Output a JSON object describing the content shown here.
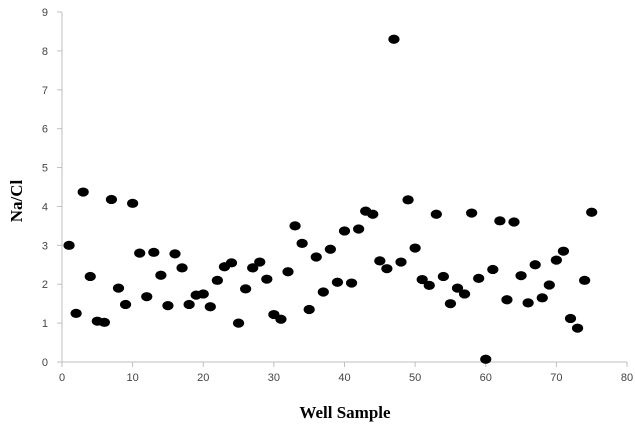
{
  "chart_data": {
    "type": "scatter",
    "title": "",
    "xlabel": "Well Sample",
    "ylabel": "Na/Cl",
    "xlim": [
      0,
      80
    ],
    "ylim": [
      0,
      9
    ],
    "xticks": [
      0,
      10,
      20,
      30,
      40,
      50,
      60,
      70,
      80
    ],
    "yticks": [
      0,
      1,
      2,
      3,
      4,
      5,
      6,
      7,
      8,
      9
    ],
    "grid": false,
    "legend": "none",
    "marker_color": "#000000",
    "axis_color": "#bfbfbf",
    "series": [
      {
        "x": [
          1,
          2,
          3,
          4,
          5,
          6,
          7,
          8,
          9,
          10,
          11,
          12,
          13,
          14,
          15,
          16,
          17,
          18,
          19,
          20,
          21,
          22,
          23,
          24,
          25,
          26,
          27,
          28,
          29,
          30,
          31,
          32,
          33,
          34,
          35,
          36,
          37,
          38,
          39,
          40,
          41,
          42,
          43,
          44,
          45,
          46,
          47,
          48,
          49,
          50,
          51,
          52,
          53,
          54,
          55,
          56,
          57,
          58,
          59,
          60,
          61,
          62,
          63,
          64,
          65,
          66,
          67,
          68,
          69,
          70,
          71,
          72,
          73,
          74,
          75
        ],
        "y": [
          3.0,
          1.25,
          4.37,
          2.2,
          1.05,
          1.02,
          4.18,
          1.9,
          1.48,
          4.08,
          2.8,
          1.68,
          2.82,
          2.23,
          1.45,
          2.78,
          2.42,
          1.48,
          1.72,
          1.75,
          1.42,
          2.1,
          2.45,
          2.55,
          1.0,
          1.88,
          2.42,
          2.57,
          2.13,
          1.22,
          1.1,
          2.32,
          3.5,
          3.05,
          1.35,
          2.7,
          1.8,
          2.9,
          2.05,
          3.37,
          2.03,
          3.42,
          3.88,
          3.8,
          2.6,
          2.4,
          8.3,
          2.57,
          4.17,
          2.93,
          2.12,
          1.97,
          3.8,
          2.2,
          1.5,
          1.9,
          1.75,
          3.83,
          2.15,
          0.07,
          2.38,
          3.63,
          1.6,
          3.6,
          2.22,
          1.52,
          2.5,
          1.65,
          1.98,
          2.62,
          2.85,
          1.12,
          0.87,
          2.1,
          3.85
        ]
      }
    ]
  }
}
